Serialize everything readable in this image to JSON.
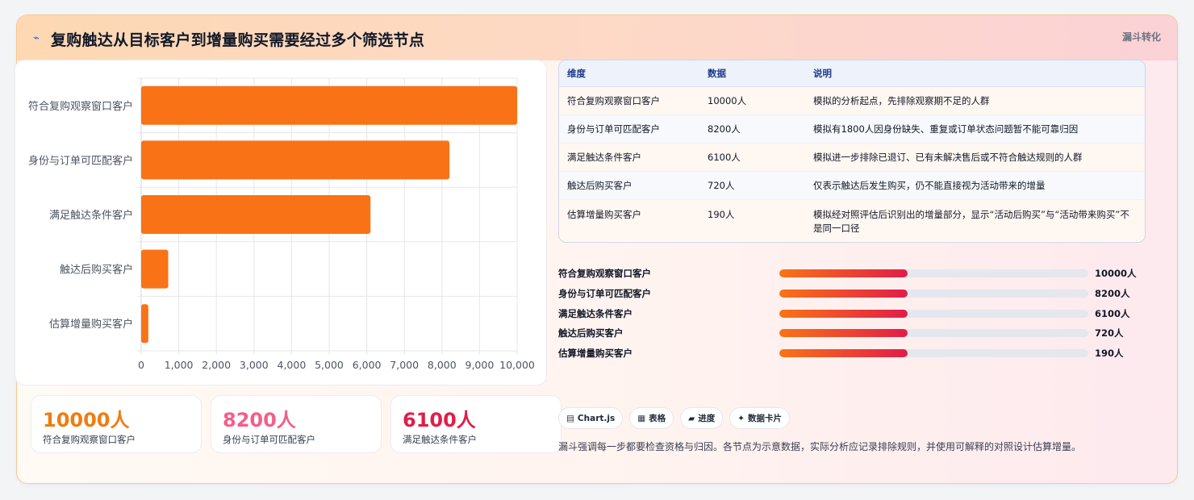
{
  "header": {
    "icon": "trend-line-icon",
    "title": "复购触达从目标客户到增量购买需要经过多个筛选节点",
    "badge": "漏斗转化"
  },
  "chart_data": {
    "type": "bar",
    "orientation": "horizontal",
    "categories": [
      "符合复购观察窗口客户",
      "身份与订单可匹配客户",
      "满足触达条件客户",
      "触达后购买客户",
      "估算增量购买客户"
    ],
    "values": [
      10000,
      8200,
      6100,
      720,
      190
    ],
    "xlim": [
      0,
      10000
    ],
    "xticks": [
      "0",
      "1,000",
      "2,000",
      "3,000",
      "4,000",
      "5,000",
      "6,000",
      "7,000",
      "8,000",
      "9,000",
      "10,000"
    ],
    "bar_color": "#f97316",
    "grid": true
  },
  "stats": [
    {
      "value": "10000人",
      "label": "符合复购观察窗口客户",
      "color": "#f07c12"
    },
    {
      "value": "8200人",
      "label": "身份与订单可匹配客户",
      "color": "#f25f8a"
    },
    {
      "value": "6100人",
      "label": "满足触达条件客户",
      "color": "#e11d48"
    }
  ],
  "table": {
    "headers": [
      "维度",
      "数据",
      "说明"
    ],
    "rows": [
      [
        "符合复购观察窗口客户",
        "10000人",
        "模拟的分析起点，先排除观察期不足的人群"
      ],
      [
        "身份与订单可匹配客户",
        "8200人",
        "模拟有1800人因身份缺失、重复或订单状态问题暂不能可靠归因"
      ],
      [
        "满足触达条件客户",
        "6100人",
        "模拟进一步排除已退订、已有未解决售后或不符合触达规则的人群"
      ],
      [
        "触达后购买客户",
        "720人",
        "仅表示触达后发生购买，仍不能直接视为活动带来的增量"
      ],
      [
        "估算增量购买客户",
        "190人",
        "模拟经对照评估后识别出的增量部分，显示“活动后购买”与“活动带来购买”不是同一口径"
      ]
    ]
  },
  "progress": [
    {
      "label": "符合复购观察窗口客户",
      "value": "10000人",
      "fill_fraction": 0.415
    },
    {
      "label": "身份与订单可匹配客户",
      "value": "8200人",
      "fill_fraction": 0.415
    },
    {
      "label": "满足触达条件客户",
      "value": "6100人",
      "fill_fraction": 0.415
    },
    {
      "label": "触达后购买客户",
      "value": "720人",
      "fill_fraction": 0.415
    },
    {
      "label": "估算增量购买客户",
      "value": "190人",
      "fill_fraction": 0.415
    }
  ],
  "chips": [
    {
      "icon": "▤",
      "label": "Chart.js"
    },
    {
      "icon": "▦",
      "label": "表格"
    },
    {
      "icon": "▰",
      "label": "进度"
    },
    {
      "icon": "✦",
      "label": "数据卡片"
    }
  ],
  "footnote": "漏斗强调每一步都要检查资格与归因。各节点为示意数据，实际分析应记录排除规则，并使用可解释的对照设计估算增量。"
}
